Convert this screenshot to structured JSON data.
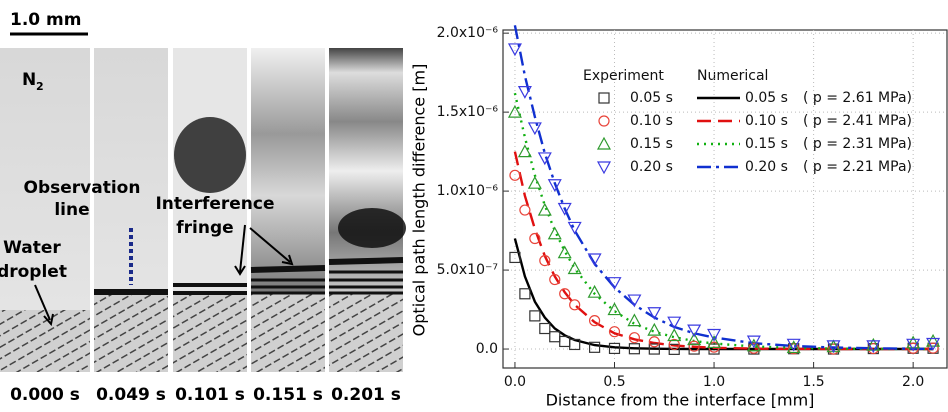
{
  "figure": {
    "scale_bar": "1.0 mm",
    "gas": "N",
    "gas_subscript": "2",
    "observation_label": [
      "Observation",
      "line"
    ],
    "droplet_label": [
      "Water",
      "droplet"
    ],
    "fringe_label": [
      "Interference",
      "fringe"
    ],
    "times": [
      "0.000 s",
      "0.049 s",
      "0.101 s",
      "0.151 s",
      "0.201 s"
    ]
  },
  "chart_data": {
    "type": "line",
    "x_label": "Distance from the interface [mm]",
    "y_label": "Optical path length difference [m]",
    "legend_titles": [
      "Experiment",
      "Numerical"
    ],
    "grid": true,
    "xlim": [
      -0.06,
      2.17
    ],
    "ylim": [
      -1.2e-07,
      2.02e-06
    ],
    "xticks": [
      {
        "value": 0,
        "label": "0.0"
      },
      0.5,
      {
        "value": 1,
        "label": "1.0"
      },
      1.5,
      {
        "value": 2,
        "label": "2.0"
      }
    ],
    "yticks": [
      {
        "value": 0,
        "label": "0.0"
      },
      {
        "value": 5e-07,
        "label": "5.0x10⁻⁷"
      },
      {
        "value": 1e-06,
        "label": "1.0x10⁻⁶"
      },
      {
        "value": 1.5e-06,
        "label": "1.5x10⁻⁶"
      },
      {
        "value": 2e-06,
        "label": "2.0x10⁻⁶"
      }
    ],
    "x": [
      0,
      0.05,
      0.1,
      0.15,
      0.2,
      0.25,
      0.3,
      0.4,
      0.5,
      0.6,
      0.7,
      0.8,
      0.9,
      1.0,
      1.2,
      1.4,
      1.6,
      1.8,
      2.0,
      2.1
    ],
    "series": [
      {
        "name": "0.05 s",
        "color": "#333333",
        "marker": "square",
        "values": [
          5.8e-07,
          3.5e-07,
          2.1e-07,
          1.3e-07,
          7.8e-08,
          4.8e-08,
          2.9e-08,
          1.1e-08,
          4e-09,
          2e-09,
          0,
          -2e-09,
          0,
          0,
          0,
          2e-09,
          0,
          3e-09,
          5e-09,
          5e-09
        ]
      },
      {
        "name": "0.10 s",
        "color": "#e8443a",
        "marker": "circle",
        "values": [
          1.1e-06,
          8.8e-07,
          7e-07,
          5.6e-07,
          4.4e-07,
          3.5e-07,
          2.8e-07,
          1.8e-07,
          1.1e-07,
          7.2e-08,
          4.6e-08,
          2.9e-08,
          1.8e-08,
          1.2e-08,
          5e-09,
          2e-09,
          0,
          3e-09,
          5e-09,
          6e-09
        ]
      },
      {
        "name": "0.15 s",
        "color": "#2e9a2e",
        "marker": "triangle-up",
        "values": [
          1.5e-06,
          1.25e-06,
          1.05e-06,
          8.8e-07,
          7.3e-07,
          6.1e-07,
          5.1e-07,
          3.6e-07,
          2.5e-07,
          1.8e-07,
          1.2e-07,
          8.6e-08,
          6e-08,
          4.2e-08,
          2.1e-08,
          1e-08,
          1.5e-08,
          2.5e-08,
          4e-08,
          5e-08
        ]
      },
      {
        "name": "0.20 s",
        "color": "#3a3ae0",
        "marker": "triangle-down",
        "values": [
          1.9e-06,
          1.63e-06,
          1.4e-06,
          1.21e-06,
          1.04e-06,
          8.9e-07,
          7.7e-07,
          5.7e-07,
          4.2e-07,
          3.1e-07,
          2.3e-07,
          1.7e-07,
          1.2e-07,
          9.2e-08,
          5e-08,
          3e-08,
          2e-08,
          2e-08,
          3e-08,
          3.5e-08
        ]
      },
      {
        "name": "0.05 s",
        "color": "#000000",
        "line_style": "solid",
        "pressure_label": "( p = 2.61 MPa)",
        "values": [
          7e-07,
          4.6e-07,
          3e-07,
          2e-07,
          1.3e-07,
          8.7e-08,
          5.7e-08,
          2.5e-08,
          1.1e-08,
          5e-09,
          2e-09,
          1e-09,
          0,
          0,
          0,
          0,
          0,
          0,
          0,
          0
        ]
      },
      {
        "name": "0.10 s",
        "color": "#e01010",
        "line_style": "dashed",
        "pressure_label": "( p = 2.41 MPa)",
        "values": [
          1.25e-06,
          9.7e-07,
          7.6e-07,
          5.9e-07,
          4.6e-07,
          3.6e-07,
          2.8e-07,
          1.7e-07,
          1e-07,
          6.2e-08,
          3.8e-08,
          2.3e-08,
          1.4e-08,
          8e-09,
          3e-09,
          1e-09,
          0,
          0,
          0,
          0
        ]
      },
      {
        "name": "0.15 s",
        "color": "#10b010",
        "line_style": "dotted",
        "pressure_label": "( p = 2.31 MPa)",
        "values": [
          1.62e-06,
          1.34e-06,
          1.1e-06,
          9.1e-07,
          7.5e-07,
          6.2e-07,
          5.1e-07,
          3.5e-07,
          2.4e-07,
          1.6e-07,
          1.1e-07,
          7.5e-08,
          5.1e-08,
          3.5e-08,
          1.6e-08,
          7e-09,
          3e-09,
          1e-09,
          0,
          0
        ]
      },
      {
        "name": "0.20 s",
        "color": "#1030d0",
        "line_style": "dash-dot",
        "pressure_label": "( p = 2.21 MPa)",
        "values": [
          2.05e-06,
          1.73e-06,
          1.47e-06,
          1.24e-06,
          1.05e-06,
          8.9e-07,
          7.5e-07,
          5.4e-07,
          3.9e-07,
          2.8e-07,
          2e-07,
          1.4e-07,
          1e-07,
          7.3e-08,
          3.7e-08,
          1.9e-08,
          1e-08,
          5e-09,
          2e-09,
          1e-09
        ]
      }
    ]
  }
}
